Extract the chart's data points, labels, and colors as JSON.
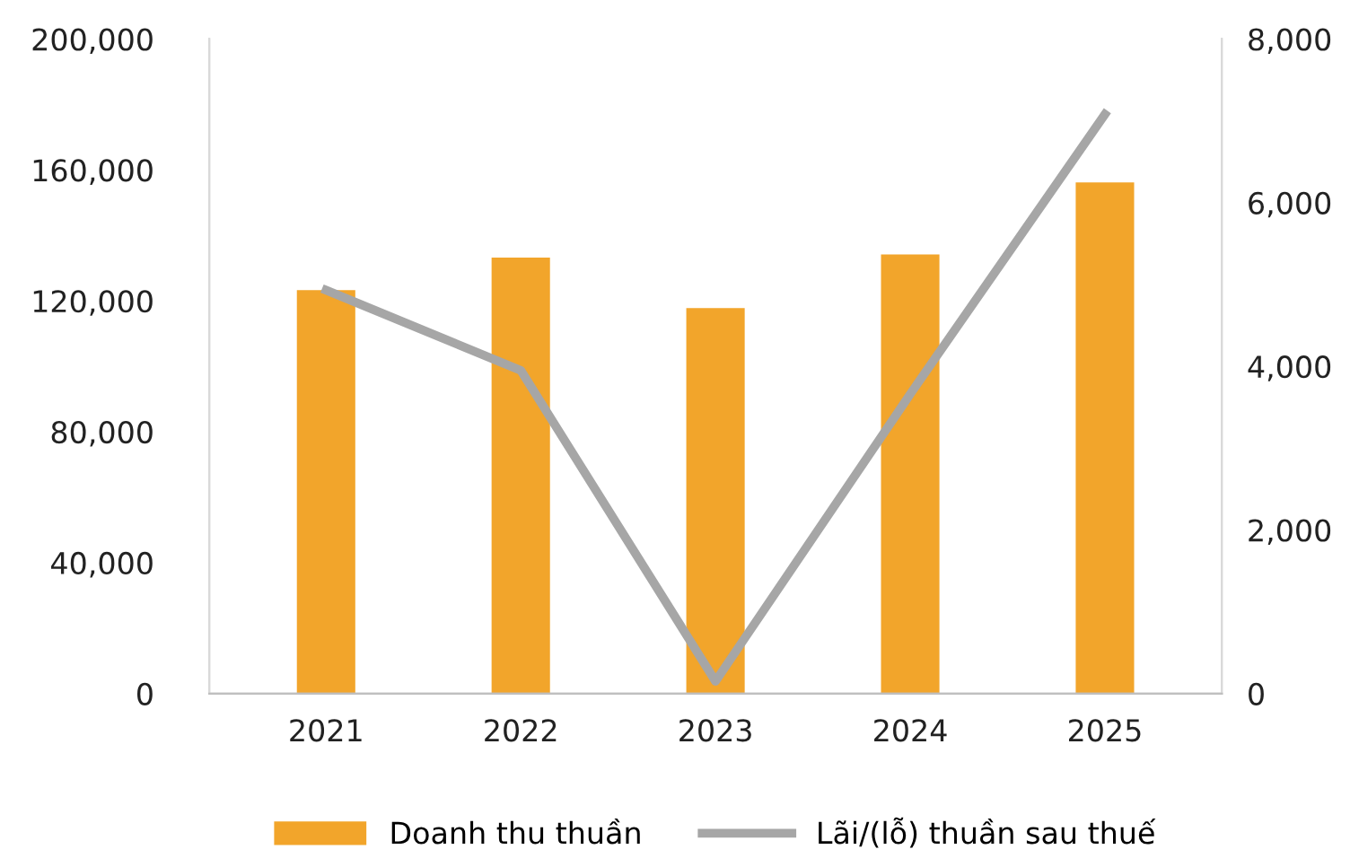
{
  "chart_data": {
    "type": "bar",
    "categories": [
      "2021",
      "2022",
      "2023",
      "2024",
      "2025"
    ],
    "series": [
      {
        "name": "Doanh thu thuần",
        "color": "#f2a52b",
        "values": [
          123300,
          133200,
          117800,
          134200,
          156200
        ]
      },
      {
        "name": "Lãi/(lỗ) thuần sau thuế",
        "color": "#a6a6a6",
        "type": "line",
        "axis": "y2",
        "values": [
          4930,
          3950,
          150,
          3660,
          7080
        ]
      }
    ],
    "ylim": [
      0,
      200000
    ],
    "yticks": [
      {
        "value": 0,
        "label": "0"
      },
      {
        "value": 40000,
        "label": "40,000"
      },
      {
        "value": 80000,
        "label": "80,000"
      },
      {
        "value": 120000,
        "label": "120,000"
      },
      {
        "value": 160000,
        "label": "160,000"
      },
      {
        "value": 200000,
        "label": "200,000"
      }
    ],
    "y2lim": [
      0,
      8000
    ],
    "y2ticks": [
      {
        "value": 0,
        "label": "0"
      },
      {
        "value": 2000,
        "label": "2,000"
      },
      {
        "value": 4000,
        "label": "4,000"
      },
      {
        "value": 6000,
        "label": "6,000"
      },
      {
        "value": 8000,
        "label": "8,000"
      }
    ],
    "grid": false,
    "legend": "bottom",
    "marker": "none",
    "line_style": "solid"
  }
}
